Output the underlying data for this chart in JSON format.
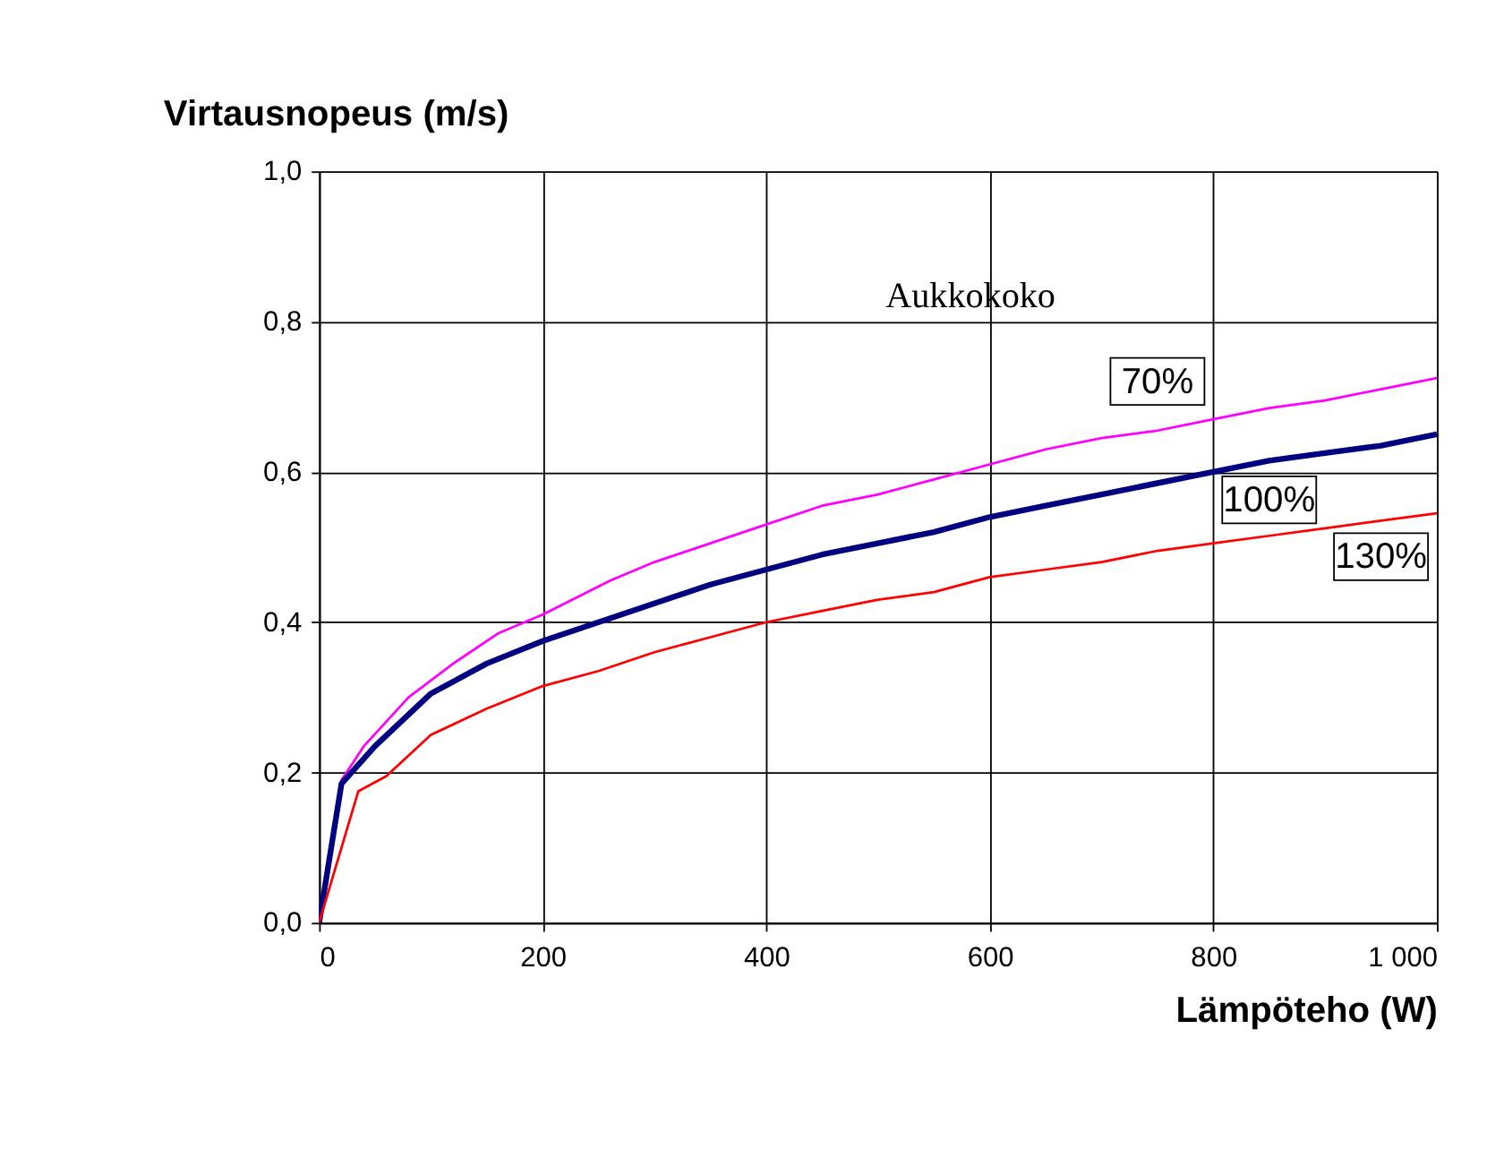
{
  "chart_data": {
    "type": "line",
    "title": "Virtausnopeus (m/s)",
    "xlabel": "Lämpöteho (W)",
    "legend_title": "Aukkokoko",
    "xlim": [
      0,
      1000
    ],
    "xticks": [
      0,
      200,
      400,
      600,
      800,
      {
        "value": 1000,
        "label": "1 000"
      }
    ],
    "ylim": [
      0,
      1
    ],
    "yticks": [
      {
        "value": 0,
        "label": "0,0"
      },
      {
        "value": 0.2,
        "label": "0,2"
      },
      {
        "value": 0.4,
        "label": "0,4"
      },
      {
        "value": 0.6,
        "label": "0,6"
      },
      {
        "value": 0.8,
        "label": "0,8"
      },
      {
        "value": 1,
        "label": "1,0"
      }
    ],
    "grid": true,
    "legend": false,
    "marker": "none",
    "line_style": "solid",
    "series": [
      {
        "name": "70%",
        "color": "#ff00ff",
        "x": [
          0,
          20,
          40,
          80,
          120,
          160,
          200,
          260,
          300,
          350,
          400,
          450,
          500,
          550,
          600,
          650,
          700,
          750,
          800,
          850,
          900,
          950,
          1000
        ],
        "values": [
          0,
          0.19,
          0.235,
          0.3,
          0.345,
          0.385,
          0.41,
          0.455,
          0.48,
          0.505,
          0.53,
          0.555,
          0.57,
          0.59,
          0.61,
          0.63,
          0.645,
          0.655,
          0.67,
          0.685,
          0.695,
          0.71,
          0.725
        ]
      },
      {
        "name": "100%",
        "color": "#000080",
        "x": [
          0,
          20,
          50,
          100,
          150,
          200,
          250,
          300,
          350,
          400,
          450,
          500,
          550,
          600,
          650,
          700,
          750,
          800,
          850,
          900,
          950,
          1000
        ],
        "values": [
          0,
          0.185,
          0.235,
          0.305,
          0.345,
          0.375,
          0.4,
          0.425,
          0.45,
          0.47,
          0.49,
          0.505,
          0.52,
          0.54,
          0.555,
          0.57,
          0.585,
          0.6,
          0.615,
          0.625,
          0.635,
          0.65
        ]
      },
      {
        "name": "130%",
        "color": "#ff0000",
        "x": [
          0,
          35,
          60,
          100,
          150,
          200,
          250,
          300,
          350,
          400,
          450,
          500,
          550,
          600,
          650,
          700,
          750,
          800,
          850,
          900,
          950,
          1000
        ],
        "values": [
          0,
          0.175,
          0.195,
          0.25,
          0.285,
          0.315,
          0.335,
          0.36,
          0.38,
          0.4,
          0.415,
          0.43,
          0.44,
          0.46,
          0.47,
          0.48,
          0.495,
          0.505,
          0.515,
          0.525,
          0.535,
          0.545
        ]
      }
    ]
  }
}
